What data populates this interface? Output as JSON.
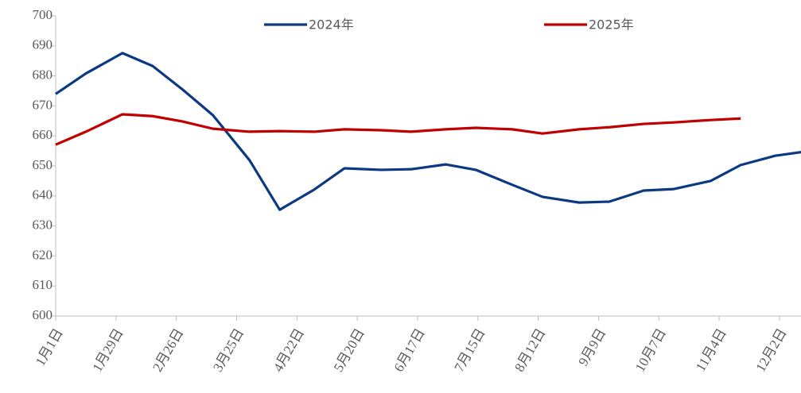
{
  "chart_data": {
    "type": "line",
    "x": [
      0,
      14,
      31,
      45,
      59,
      73,
      90,
      104,
      120,
      134,
      151,
      165,
      181,
      195,
      212,
      226,
      243,
      257,
      273,
      287,
      304,
      318,
      334,
      348
    ],
    "series": [
      {
        "name": "2024年",
        "color": "#0b3a82",
        "values": [
          674.0,
          680.8,
          687.6,
          683.3,
          675.4,
          666.9,
          651.9,
          635.4,
          642.1,
          649.2,
          648.7,
          648.9,
          650.5,
          648.7,
          643.7,
          639.7,
          637.8,
          638.1,
          641.8,
          642.3,
          645.0,
          650.3,
          653.4,
          654.8
        ]
      },
      {
        "name": "2025年",
        "color": "#c00000",
        "values": [
          657.1,
          661.4,
          667.2,
          666.6,
          664.8,
          662.4,
          661.4,
          661.6,
          661.4,
          662.2,
          661.9,
          661.4,
          662.2,
          662.7,
          662.2,
          660.8,
          662.2,
          662.9,
          664.0,
          664.5,
          665.3,
          665.8,
          null,
          null
        ]
      }
    ],
    "xlim": [
      0,
      346
    ],
    "xticks": [
      {
        "value": 0,
        "label": "1月1日"
      },
      {
        "value": 28,
        "label": "1月29日"
      },
      {
        "value": 56,
        "label": "2月26日"
      },
      {
        "value": 84,
        "label": "3月25日"
      },
      {
        "value": 112,
        "label": "4月22日"
      },
      {
        "value": 140,
        "label": "5月20日"
      },
      {
        "value": 168,
        "label": "6月17日"
      },
      {
        "value": 196,
        "label": "7月15日"
      },
      {
        "value": 224,
        "label": "8月12日"
      },
      {
        "value": 252,
        "label": "9月9日"
      },
      {
        "value": 280,
        "label": "10月7日"
      },
      {
        "value": 308,
        "label": "11月4日"
      },
      {
        "value": 336,
        "label": "12月2日"
      }
    ],
    "ylim": [
      600,
      700
    ],
    "yticks": [
      600,
      610,
      620,
      630,
      640,
      650,
      660,
      670,
      680,
      690,
      700
    ],
    "legend": "top"
  }
}
